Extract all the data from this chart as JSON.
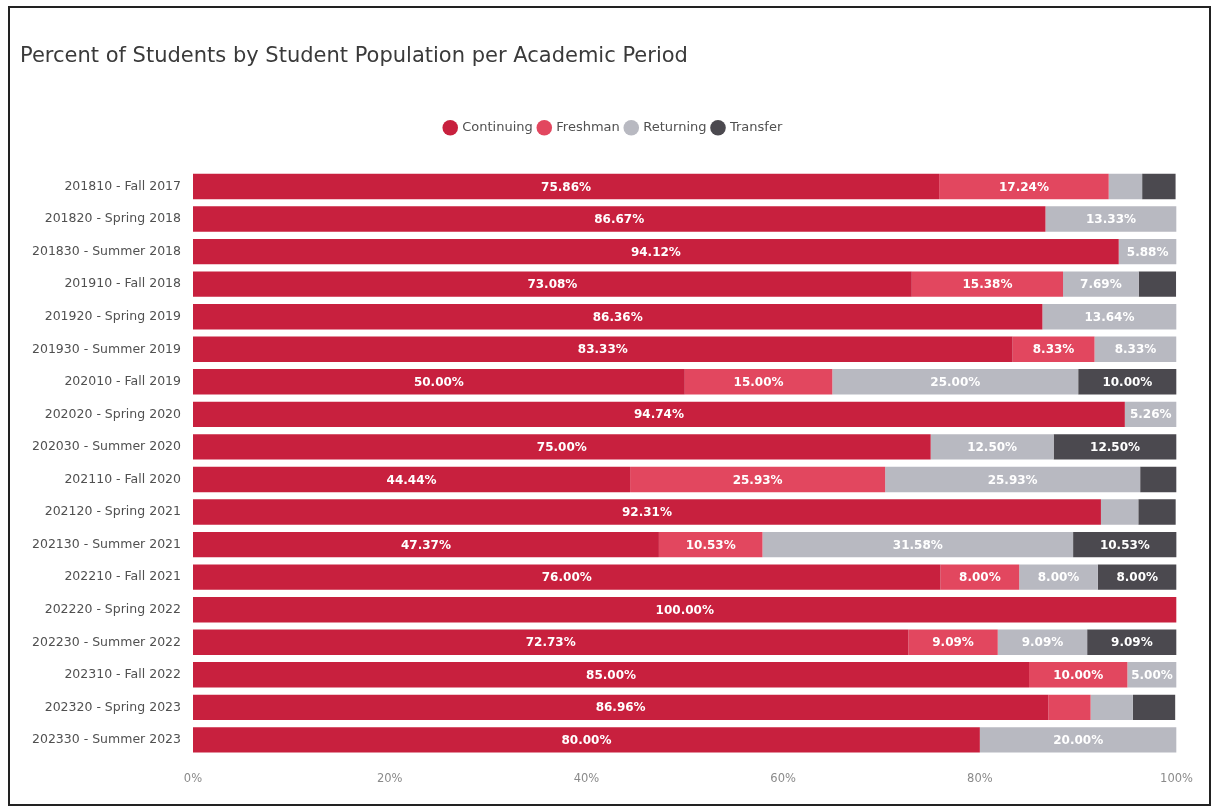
{
  "chart_data": {
    "type": "bar",
    "orientation": "horizontal",
    "stacked": true,
    "title": "Percent of Students by Student Population per Academic Period",
    "legend": "top",
    "categories": [
      "201810 - Fall 2017",
      "201820 - Spring 2018",
      "201830 - Summer 2018",
      "201910 - Fall 2018",
      "201920 - Spring 2019",
      "201930 - Summer 2019",
      "202010 - Fall 2019",
      "202020 - Spring 2020",
      "202030 - Summer 2020",
      "202110 - Fall 2020",
      "202120 - Spring 2021",
      "202130 - Summer 2021",
      "202210 - Fall 2021",
      "202220 - Spring 2022",
      "202230 - Summer 2022",
      "202310 - Fall 2022",
      "202320 - Spring 2023",
      "202330 - Summer 2023"
    ],
    "series": [
      {
        "name": "Continuing",
        "color": "#c8203e",
        "values": [
          75.86,
          86.67,
          94.12,
          73.08,
          86.36,
          83.33,
          50.0,
          94.74,
          75.0,
          44.44,
          92.31,
          47.37,
          76.0,
          100.0,
          72.73,
          85.0,
          86.96,
          80.0
        ],
        "value_labels": [
          "75.86%",
          "86.67%",
          "94.12%",
          "73.08%",
          "86.36%",
          "83.33%",
          "50.00%",
          "94.74%",
          "75.00%",
          "44.44%",
          "92.31%",
          "47.37%",
          "76.00%",
          "100.00%",
          "72.73%",
          "85.00%",
          "86.96%",
          "80.00%"
        ]
      },
      {
        "name": "Freshman",
        "color": "#e2475f",
        "values": [
          17.24,
          null,
          null,
          15.38,
          null,
          8.33,
          15.0,
          null,
          null,
          25.93,
          null,
          10.53,
          8.0,
          null,
          9.09,
          10.0,
          4.3,
          null
        ],
        "value_labels": [
          "17.24%",
          null,
          null,
          "15.38%",
          null,
          "8.33%",
          "15.00%",
          null,
          null,
          "25.93%",
          null,
          "10.53%",
          "8.00%",
          null,
          "9.09%",
          "10.00%",
          null,
          null
        ]
      },
      {
        "name": "Returning",
        "color": "#b8b9c1",
        "values": [
          3.4,
          13.33,
          5.88,
          7.69,
          13.64,
          8.33,
          25.0,
          5.26,
          12.5,
          25.93,
          3.8,
          31.58,
          8.0,
          null,
          9.09,
          5.0,
          4.3,
          20.0
        ],
        "value_labels": [
          null,
          "13.33%",
          "5.88%",
          "7.69%",
          "13.64%",
          "8.33%",
          "25.00%",
          "5.26%",
          "12.50%",
          "25.93%",
          null,
          "31.58%",
          "8.00%",
          null,
          "9.09%",
          "5.00%",
          null,
          "20.00%"
        ]
      },
      {
        "name": "Transfer",
        "color": "#4b494f",
        "values": [
          3.4,
          null,
          null,
          3.8,
          null,
          null,
          10.0,
          null,
          12.5,
          3.7,
          3.8,
          10.53,
          8.0,
          null,
          9.09,
          null,
          4.3,
          null
        ],
        "value_labels": [
          null,
          null,
          null,
          null,
          null,
          null,
          "10.00%",
          null,
          "12.50%",
          null,
          null,
          "10.53%",
          "8.00%",
          null,
          "9.09%",
          null,
          null,
          null
        ]
      }
    ],
    "xlim": [
      0,
      100
    ],
    "xticks": [
      {
        "value": 0,
        "label": "0%"
      },
      {
        "value": 20,
        "label": "20%"
      },
      {
        "value": 40,
        "label": "40%"
      },
      {
        "value": 60,
        "label": "60%"
      },
      {
        "value": 80,
        "label": "80%"
      },
      {
        "value": 100,
        "label": "100%"
      }
    ]
  }
}
